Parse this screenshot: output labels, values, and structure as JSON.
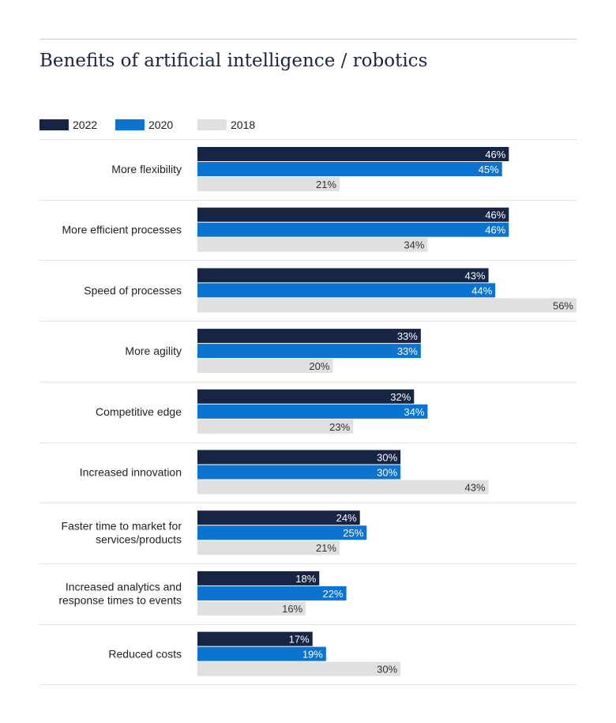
{
  "chart_data": {
    "type": "bar",
    "orientation": "horizontal",
    "title": "Benefits of artificial intelligence / robotics",
    "categories": [
      "More flexibility",
      "More efficient processes",
      "Speed of processes",
      "More agility",
      "Competitive edge",
      "Increased innovation",
      "Faster time to market for services/products",
      "Increased analytics and response times to events",
      "Reduced costs"
    ],
    "category_lines": [
      [
        "More flexibility"
      ],
      [
        "More efficient processes"
      ],
      [
        "Speed of processes"
      ],
      [
        "More agility"
      ],
      [
        "Competitive edge"
      ],
      [
        "Increased innovation"
      ],
      [
        "Faster time to market for",
        "services/products"
      ],
      [
        "Increased analytics and",
        "response times to events"
      ],
      [
        "Reduced costs"
      ]
    ],
    "series": [
      {
        "name": "2022",
        "color": "#172444",
        "label_color": "#ffffff",
        "values": [
          46,
          46,
          43,
          33,
          32,
          30,
          24,
          18,
          17
        ]
      },
      {
        "name": "2020",
        "color": "#0a74d0",
        "label_color": "#ffffff",
        "values": [
          45,
          46,
          44,
          33,
          34,
          30,
          25,
          22,
          19
        ]
      },
      {
        "name": "2018",
        "color": "#e0e0e0",
        "label_color": "#333333",
        "values": [
          21,
          34,
          56,
          20,
          23,
          43,
          21,
          16,
          30
        ]
      }
    ],
    "value_suffix": "%",
    "xlim": [
      0,
      56
    ],
    "legend_position": "top-left",
    "grid": false
  }
}
